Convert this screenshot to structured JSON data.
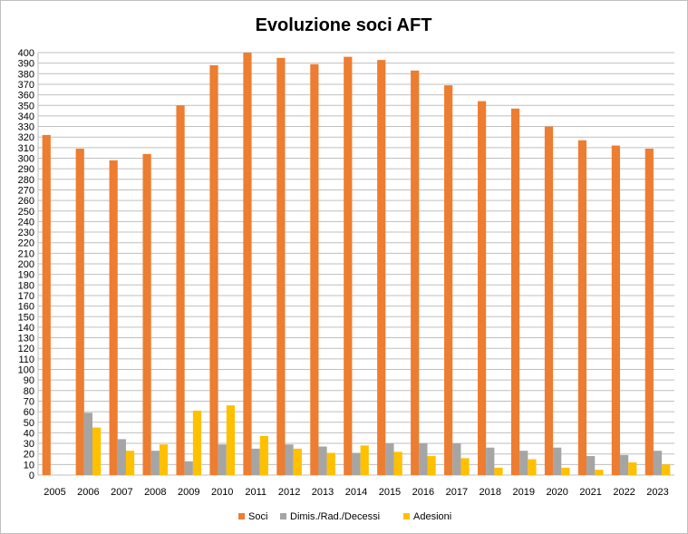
{
  "chart_data": {
    "type": "bar",
    "title": "Evoluzione soci AFT",
    "xlabel": "",
    "ylabel": "",
    "categories": [
      "2005",
      "2006",
      "2007",
      "2008",
      "2009",
      "2010",
      "2011",
      "2012",
      "2013",
      "2014",
      "2015",
      "2016",
      "2017",
      "2018",
      "2019",
      "2020",
      "2021",
      "2022",
      "2023"
    ],
    "series": [
      {
        "name": "Soci",
        "color": "#ED7D31",
        "values": [
          322,
          309,
          298,
          304,
          350,
          388,
          400,
          395,
          389,
          396,
          393,
          383,
          369,
          354,
          347,
          330,
          317,
          312,
          309
        ]
      },
      {
        "name": "Dimis./Rad./Decessi",
        "color": "#A5A5A5",
        "values": [
          0,
          59,
          34,
          23,
          13,
          29,
          25,
          29,
          27,
          21,
          30,
          30,
          30,
          26,
          23,
          26,
          18,
          19,
          23
        ]
      },
      {
        "name": "Adesioni",
        "color": "#FFC000",
        "values": [
          0,
          45,
          23,
          29,
          61,
          66,
          37,
          25,
          21,
          28,
          22,
          18,
          16,
          7,
          15,
          7,
          5,
          12,
          10
        ]
      }
    ],
    "ylim": [
      0,
      400
    ],
    "ytick_step": 10,
    "grid": true,
    "legend_position": "bottom"
  }
}
